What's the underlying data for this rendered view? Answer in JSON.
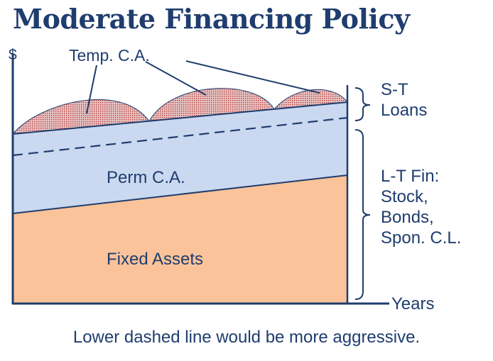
{
  "title": "Moderate Financing Policy",
  "axes": {
    "y_label": "$",
    "x_label": "Years"
  },
  "regions": {
    "temp_ca": "Temp. C.A.",
    "perm_ca": "Perm C.A.",
    "fixed_assets": "Fixed Assets"
  },
  "brackets": {
    "short_term": [
      "S-T",
      "Loans"
    ],
    "long_term": [
      "L-T Fin:",
      "Stock,",
      "Bonds,",
      "Spon. C.L."
    ]
  },
  "caption": "Lower dashed line would be more aggressive.",
  "colors": {
    "title": "#1f3d6e",
    "line": "#1f3d6e",
    "fixed_assets_fill": "#fbc39a",
    "perm_ca_fill": "#cad9f0",
    "temp_ca_fill": "#e7c8c8",
    "temp_ca_dots": "#b5302e"
  }
}
